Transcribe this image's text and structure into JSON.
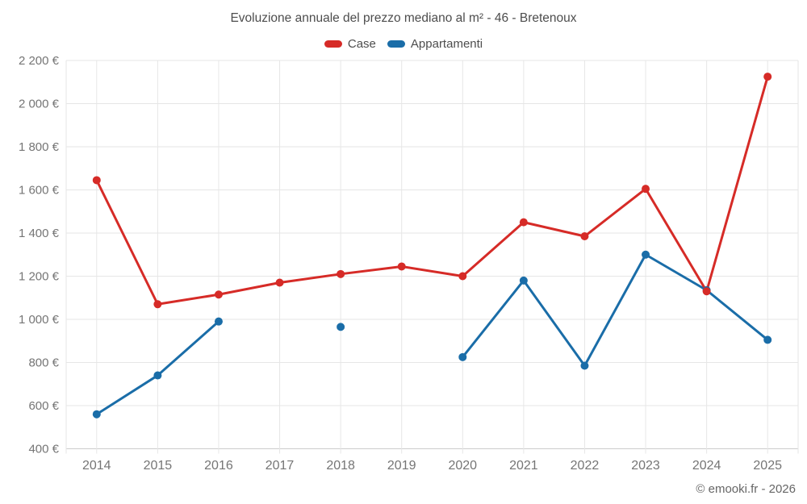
{
  "title": "Evoluzione annuale del prezzo mediano al m² - 46 - Bretenoux",
  "copyright": "© emooki.fr - 2026",
  "legend": [
    {
      "label": "Case",
      "color": "#d62b27"
    },
    {
      "label": "Appartamenti",
      "color": "#1a6da8"
    }
  ],
  "colors": {
    "grid": "#e6e6e6",
    "axis_line": "#cccccc",
    "tick_text": "#757575",
    "title_text": "#4d4d4d"
  },
  "chart_data": {
    "type": "line",
    "title": "Evoluzione annuale del prezzo mediano al m² - 46 - Bretenoux",
    "categories": [
      "2014",
      "2015",
      "2016",
      "2017",
      "2018",
      "2019",
      "2020",
      "2021",
      "2022",
      "2023",
      "2024",
      "2025"
    ],
    "series": [
      {
        "name": "Case",
        "color": "#d62b27",
        "values": [
          1645,
          1070,
          1115,
          1170,
          1210,
          1245,
          1200,
          1450,
          1385,
          1605,
          1130,
          2125
        ]
      },
      {
        "name": "Appartamenti",
        "color": "#1a6da8",
        "values": [
          560,
          740,
          990,
          null,
          965,
          null,
          825,
          1180,
          785,
          1300,
          1135,
          905
        ]
      }
    ],
    "xlabel": "",
    "ylabel": "",
    "ylim": [
      400,
      2200
    ],
    "yticks": [
      400,
      600,
      800,
      1000,
      1200,
      1400,
      1600,
      1800,
      2000,
      2200
    ],
    "ytick_labels": [
      "400 €",
      "600 €",
      "800 €",
      "1 000 €",
      "1 200 €",
      "1 400 €",
      "1 600 €",
      "1 800 €",
      "2 000 €",
      "2 200 €"
    ],
    "grid": true,
    "legend_position": "top"
  }
}
